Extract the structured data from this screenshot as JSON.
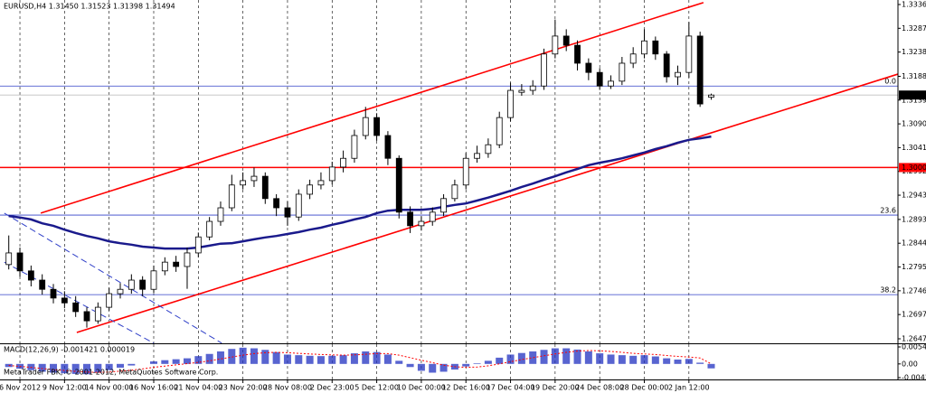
{
  "chart_data": [
    {
      "type": "candlestick",
      "title": "EURUSD,H4  1.31450 1.31523 1.31398 1.31494",
      "categories": [
        null,
        "6 Nov 2012",
        null,
        null,
        null,
        "9 Nov 12:00",
        null,
        null,
        null,
        "14 Nov 00:00",
        null,
        null,
        null,
        "16 Nov 16:00",
        null,
        null,
        null,
        "21 Nov 04:00",
        null,
        null,
        null,
        "23 Nov 20:00",
        null,
        null,
        null,
        "28 Nov 08:00",
        null,
        null,
        null,
        "2 Dec 23:00",
        null,
        null,
        null,
        "5 Dec 12:00",
        null,
        null,
        null,
        "10 Dec 00:00",
        null,
        null,
        null,
        "12 Dec 16:00",
        null,
        null,
        null,
        "17 Dec 04:00",
        null,
        null,
        null,
        "19 Dec 20:00",
        null,
        null,
        null,
        "24 Dec 08:00",
        null,
        null,
        null,
        "28 Dec 00:00",
        null,
        null,
        null,
        "2 Jan 12:00",
        null,
        null
      ],
      "ohlc": [
        [
          1.28,
          1.286,
          1.279,
          1.2824
        ],
        [
          1.2824,
          1.2835,
          1.2775,
          1.2787
        ],
        [
          1.2787,
          1.2798,
          1.2755,
          1.2768
        ],
        [
          1.2768,
          1.278,
          1.2738,
          1.2749
        ],
        [
          1.2749,
          1.276,
          1.272,
          1.2731
        ],
        [
          1.2731,
          1.2745,
          1.271,
          1.2721
        ],
        [
          1.2721,
          1.2735,
          1.2692,
          1.2703
        ],
        [
          1.2703,
          1.2712,
          1.267,
          1.2684
        ],
        [
          1.2684,
          1.2722,
          1.2678,
          1.2712
        ],
        [
          1.2712,
          1.2752,
          1.2705,
          1.274
        ],
        [
          1.274,
          1.2762,
          1.273,
          1.2749
        ],
        [
          1.2749,
          1.278,
          1.274,
          1.2768
        ],
        [
          1.2768,
          1.2776,
          1.2735,
          1.2749
        ],
        [
          1.2749,
          1.2798,
          1.2742,
          1.2787
        ],
        [
          1.2787,
          1.2815,
          1.2778,
          1.2805
        ],
        [
          1.2805,
          1.2818,
          1.2785,
          1.2796
        ],
        [
          1.2796,
          1.2835,
          1.275,
          1.2824
        ],
        [
          1.2824,
          1.2866,
          1.2815,
          1.2857
        ],
        [
          1.2857,
          1.2898,
          1.285,
          1.2889
        ],
        [
          1.2889,
          1.293,
          1.288,
          1.2917
        ],
        [
          1.2917,
          1.2985,
          1.291,
          1.2964
        ],
        [
          1.2964,
          1.299,
          1.2955,
          1.2973
        ],
        [
          1.2973,
          1.3,
          1.296,
          1.2982
        ],
        [
          1.2982,
          1.299,
          1.2925,
          1.2936
        ],
        [
          1.2936,
          1.2945,
          1.29,
          1.2917
        ],
        [
          1.2917,
          1.293,
          1.288,
          1.2898
        ],
        [
          1.2898,
          1.2955,
          1.289,
          1.2945
        ],
        [
          1.2945,
          1.2975,
          1.2935,
          1.2964
        ],
        [
          1.2964,
          1.299,
          1.2955,
          1.2973
        ],
        [
          1.2973,
          1.3012,
          1.2965,
          1.3001
        ],
        [
          1.3001,
          1.3035,
          1.299,
          1.3019
        ],
        [
          1.3019,
          1.3078,
          1.301,
          1.3066
        ],
        [
          1.3066,
          1.3125,
          1.3058,
          1.3103
        ],
        [
          1.3103,
          1.3112,
          1.3055,
          1.3066
        ],
        [
          1.3066,
          1.3075,
          1.3005,
          1.3019
        ],
        [
          1.3019,
          1.3025,
          1.2895,
          1.2908
        ],
        [
          1.2908,
          1.292,
          1.2865,
          1.288
        ],
        [
          1.288,
          1.29,
          1.287,
          1.2889
        ],
        [
          1.2889,
          1.2918,
          1.288,
          1.2908
        ],
        [
          1.2908,
          1.2945,
          1.29,
          1.2936
        ],
        [
          1.2936,
          1.2975,
          1.293,
          1.2964
        ],
        [
          1.2964,
          1.303,
          1.2955,
          1.3019
        ],
        [
          1.3019,
          1.3045,
          1.301,
          1.3029
        ],
        [
          1.3029,
          1.306,
          1.302,
          1.3047
        ],
        [
          1.3047,
          1.3115,
          1.304,
          1.3103
        ],
        [
          1.3103,
          1.3175,
          1.3095,
          1.3159
        ],
        [
          1.3155,
          1.3172,
          1.3148,
          1.3159
        ],
        [
          1.3159,
          1.318,
          1.315,
          1.3168
        ],
        [
          1.3168,
          1.3245,
          1.316,
          1.3234
        ],
        [
          1.3234,
          1.3305,
          1.3225,
          1.3271
        ],
        [
          1.3271,
          1.3285,
          1.324,
          1.3252
        ],
        [
          1.3252,
          1.3262,
          1.32,
          1.3215
        ],
        [
          1.3215,
          1.3225,
          1.318,
          1.3196
        ],
        [
          1.3196,
          1.3205,
          1.316,
          1.3168
        ],
        [
          1.3168,
          1.319,
          1.3162,
          1.3178
        ],
        [
          1.3178,
          1.3228,
          1.317,
          1.3215
        ],
        [
          1.3215,
          1.3248,
          1.3205,
          1.3234
        ],
        [
          1.3234,
          1.3285,
          1.3225,
          1.3261
        ],
        [
          1.3261,
          1.327,
          1.3222,
          1.3234
        ],
        [
          1.3234,
          1.324,
          1.3175,
          1.3187
        ],
        [
          1.3187,
          1.321,
          1.317,
          1.3196
        ],
        [
          1.3196,
          1.33,
          1.3185,
          1.3271
        ],
        [
          1.3271,
          1.328,
          1.3125,
          1.3131
        ],
        [
          1.3145,
          1.31523,
          1.31398,
          1.31494
        ]
      ],
      "ma": {
        "color": "#1a1a8c",
        "values": [
          1.29,
          1.2897,
          1.2893,
          1.2885,
          1.288,
          1.2872,
          1.2865,
          1.2859,
          1.2854,
          1.2848,
          1.2844,
          1.2841,
          1.2837,
          1.2835,
          1.2833,
          1.2833,
          1.2833,
          1.2835,
          1.2839,
          1.2843,
          1.2844,
          1.2848,
          1.2852,
          1.2856,
          1.2859,
          1.2863,
          1.2867,
          1.2872,
          1.2876,
          1.2882,
          1.2887,
          1.2893,
          1.2898,
          1.2906,
          1.2911,
          1.2913,
          1.2913,
          1.2913,
          1.2915,
          1.2919,
          1.2923,
          1.2926,
          1.2932,
          1.2938,
          1.2945,
          1.2952,
          1.296,
          1.2967,
          1.2975,
          1.2982,
          1.299,
          1.2997,
          1.3005,
          1.301,
          1.3014,
          1.3019,
          1.3025,
          1.3031,
          1.3038,
          1.3044,
          1.3051,
          1.3057,
          1.306,
          1.3064
        ]
      },
      "trendlines": [
        {
          "color": "#ff0000",
          "dashed": false,
          "points": [
            [
              2.87,
              1.2906
            ],
            [
              62.3,
              1.334
            ]
          ]
        },
        {
          "color": "#ff0000",
          "dashed": false,
          "points": [
            [
              6.1,
              1.266
            ],
            [
              79.8,
              1.3193
            ]
          ]
        },
        {
          "color": "#3040c8",
          "dashed": true,
          "points": [
            [
              -0.4,
              1.2906
            ],
            [
              19.1,
              1.2638
            ]
          ]
        },
        {
          "color": "#3040c8",
          "dashed": true,
          "points": [
            [
              -0.4,
              1.2805
            ],
            [
              13.0,
              1.2638
            ]
          ]
        }
      ],
      "levels": [
        {
          "value": 1.3168,
          "label": "0.0",
          "color": "#3040c8",
          "label_at": "line"
        },
        {
          "value": 1.3,
          "label": "1.30000",
          "color": "#ff0000",
          "label_at": "axis"
        },
        {
          "value": 1.2902,
          "label": "23.6",
          "color": "#3040c8",
          "label_at": "line"
        },
        {
          "value": 1.2738,
          "label": "38.2",
          "color": "#3040c8",
          "label_at": "line"
        }
      ],
      "last_price": {
        "value": 1.31494,
        "label": "1.31494",
        "color": "#c0c0c0"
      },
      "ylim": [
        1.26377,
        1.33453
      ],
      "yticks": [
        {
          "value": 1.3336,
          "label": "1.33360"
        },
        {
          "value": 1.3287,
          "label": "1.32870"
        },
        {
          "value": 1.3238,
          "label": "1.32380"
        },
        {
          "value": 1.3188,
          "label": "1.31880"
        },
        {
          "value": 1.3139,
          "label": "1.31390"
        },
        {
          "value": 1.309,
          "label": "1.30900"
        },
        {
          "value": 1.3041,
          "label": "1.30410"
        },
        {
          "value": 1.2992,
          "label": "1.29920"
        },
        {
          "value": 1.2943,
          "label": "1.29430"
        },
        {
          "value": 1.2893,
          "label": "1.28930"
        },
        {
          "value": 1.2844,
          "label": "1.28440"
        },
        {
          "value": 1.2795,
          "label": "1.27950"
        },
        {
          "value": 1.2746,
          "label": "1.27460"
        },
        {
          "value": 1.2697,
          "label": "1.26970"
        },
        {
          "value": 1.2647,
          "label": "1.26470"
        }
      ],
      "grid": true
    },
    {
      "type": "macd",
      "title": "MACD(12,26,9) -0.001421 0.000019",
      "copyright": "MetaTrader FBK, © 2001-2012, MetaQuotes Software Corp.",
      "color": "#2030c0",
      "values": [
        -0.001,
        -0.0015,
        -0.002,
        -0.0025,
        -0.0028,
        -0.003,
        -0.0032,
        -0.0033,
        -0.0028,
        -0.002,
        -0.0012,
        -0.0005,
        0.0,
        0.0008,
        0.0012,
        0.0015,
        0.0018,
        0.0025,
        0.0032,
        0.004,
        0.0048,
        0.0052,
        0.005,
        0.0045,
        0.0038,
        0.003,
        0.0028,
        0.0026,
        0.0025,
        0.0026,
        0.0028,
        0.0034,
        0.004,
        0.0038,
        0.003,
        0.001,
        -0.001,
        -0.0022,
        -0.0028,
        -0.0025,
        -0.0018,
        -0.0008,
        0.0002,
        0.001,
        0.002,
        0.003,
        0.0035,
        0.004,
        0.0045,
        0.005,
        0.005,
        0.0046,
        0.004,
        0.0034,
        0.003,
        0.0028,
        0.0026,
        0.0028,
        0.0024,
        0.0018,
        0.0014,
        0.0016,
        0.0004,
        -0.001421
      ],
      "signal": {
        "color": "#ff0000",
        "values": [
          -0.0005,
          -0.0008,
          -0.0011,
          -0.0015,
          -0.0018,
          -0.0021,
          -0.0024,
          -0.0026,
          -0.0027,
          -0.0026,
          -0.0023,
          -0.002,
          -0.0016,
          -0.0011,
          -0.0007,
          -0.0003,
          0.0001,
          0.0005,
          0.001,
          0.0016,
          0.0022,
          0.0028,
          0.0033,
          0.0036,
          0.0037,
          0.0036,
          0.0034,
          0.0032,
          0.003,
          0.0029,
          0.0028,
          0.0029,
          0.0031,
          0.0033,
          0.0033,
          0.0028,
          0.002,
          0.0012,
          0.0004,
          -0.0004,
          -0.0009,
          -0.0011,
          -0.001,
          -0.0006,
          0.0,
          0.0007,
          0.0014,
          0.002,
          0.0026,
          0.0032,
          0.0037,
          0.0041,
          0.0043,
          0.0042,
          0.004,
          0.0037,
          0.0034,
          0.0032,
          0.003,
          0.0027,
          0.0024,
          0.0022,
          0.0019,
          1.9e-05
        ]
      },
      "ylim": [
        -0.00497,
        0.0066
      ],
      "yticks": [
        {
          "value": 0.00544,
          "label": "0.00544"
        },
        {
          "value": 0,
          "label": "0.00"
        },
        {
          "value": -0.00439,
          "label": "-0.00439"
        }
      ]
    }
  ]
}
